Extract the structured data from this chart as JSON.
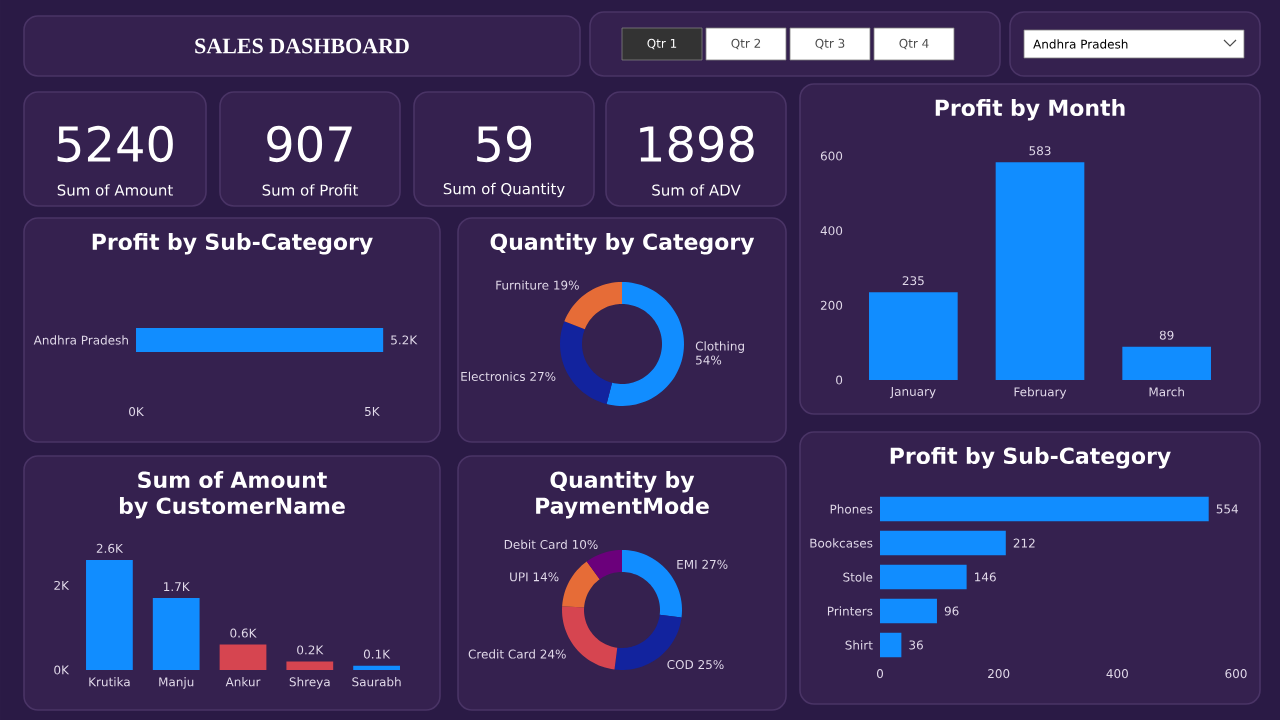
{
  "chart_data": [
    {
      "type": "other",
      "title": "SALES DASHBOARD"
    },
    {
      "type": "other",
      "annotations": [
        "Qtr 1",
        "Qtr 2",
        "Qtr 3",
        "Qtr 4"
      ]
    },
    {
      "type": "other",
      "annotations": [
        "Andhra Pradesh"
      ]
    },
    {
      "type": "other",
      "title": "5240",
      "subtitle": "Sum of Amount"
    },
    {
      "type": "other",
      "title": "907",
      "subtitle": "Sum of Profit"
    },
    {
      "type": "other",
      "title": "59",
      "subtitle": "Sum of Quantity"
    },
    {
      "type": "other",
      "title": "1898",
      "subtitle": "Sum of ADV"
    },
    {
      "type": "bar",
      "title": "Profit by Month",
      "categories": [
        "January",
        "February",
        "March"
      ],
      "values": [
        235,
        583,
        89
      ],
      "color": "#118dff",
      "ylim": [
        0,
        600
      ],
      "yticks": [
        0,
        200,
        400,
        600
      ],
      "data_labels": true
    },
    {
      "type": "bar",
      "title": "Profit by Sub-Category",
      "orientation": "horizontal",
      "categories": [
        "Andhra Pradesh"
      ],
      "values": [
        5240
      ],
      "value_labels": [
        "5.2K"
      ],
      "color": "#118dff",
      "xlim": [
        0,
        5300
      ],
      "xticks": [
        {
          "value": 0,
          "label": "0K"
        },
        {
          "value": 5000,
          "label": "5K"
        }
      ]
    },
    {
      "type": "donut",
      "title": "Quantity by Category",
      "categories": [
        "Clothing",
        "Electronics",
        "Furniture"
      ],
      "values": [
        54,
        27,
        19
      ],
      "value_labels": [
        "54%",
        "27%",
        "19%"
      ],
      "colors": [
        "#118dff",
        "#12239e",
        "#e66c37"
      ]
    },
    {
      "type": "bar",
      "title": "Sum of Amount by CustomerName",
      "categories": [
        "Krutika",
        "Manju",
        "Ankur",
        "Shreya",
        "Saurabh"
      ],
      "values": [
        2600,
        1700,
        600,
        200,
        100
      ],
      "value_labels": [
        "2.6K",
        "1.7K",
        "0.6K",
        "0.2K",
        "0.1K"
      ],
      "colors": [
        "#118dff",
        "#118dff",
        "#d64550",
        "#d64550",
        "#118dff"
      ],
      "ylim": [
        0,
        2600
      ],
      "yticks": [
        {
          "value": 0,
          "label": "0K"
        },
        {
          "value": 2000,
          "label": "2K"
        }
      ]
    },
    {
      "type": "donut",
      "title": "Quantity by PaymentMode",
      "categories": [
        "EMI",
        "COD",
        "Credit Card",
        "UPI",
        "Debit Card"
      ],
      "values": [
        27,
        25,
        24,
        14,
        10
      ],
      "value_labels": [
        "27%",
        "25%",
        "24%",
        "14%",
        "10%"
      ],
      "colors": [
        "#118dff",
        "#12239e",
        "#d64550",
        "#e66c37",
        "#6b007b"
      ]
    },
    {
      "type": "bar",
      "title": "Profit by Sub-Category",
      "orientation": "horizontal",
      "categories": [
        "Phones",
        "Bookcases",
        "Stole",
        "Printers",
        "Shirt"
      ],
      "values": [
        554,
        212,
        146,
        96,
        36
      ],
      "color": "#118dff",
      "xlim": [
        0,
        600
      ],
      "xticks": [
        0,
        200,
        400,
        600
      ],
      "data_labels": true
    }
  ]
}
